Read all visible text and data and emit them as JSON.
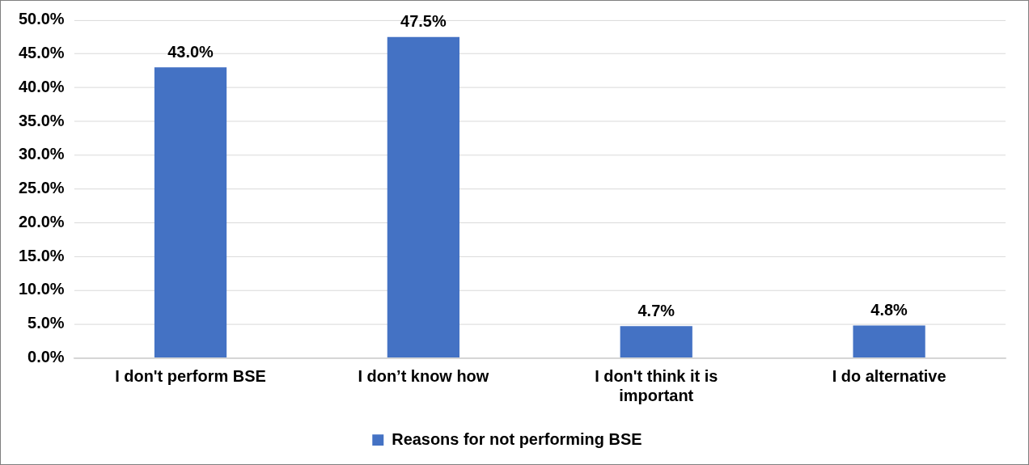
{
  "chart_data": {
    "type": "bar",
    "categories": [
      "I don't perform BSE",
      "I don’t know how",
      "I don't think it is important",
      "I do alternative"
    ],
    "series": [
      {
        "name": "Reasons for not performing BSE",
        "color": "#4472c4",
        "values": [
          43.0,
          47.5,
          4.7,
          4.8
        ],
        "value_labels": [
          "43.0%",
          "47.5%",
          "4.7%",
          "4.8%"
        ]
      }
    ],
    "ylim": [
      0,
      50
    ],
    "yticks": [
      {
        "value": 0,
        "label": "0.0%"
      },
      {
        "value": 5,
        "label": "5.0%"
      },
      {
        "value": 10,
        "label": "10.0%"
      },
      {
        "value": 15,
        "label": "15.0%"
      },
      {
        "value": 20,
        "label": "20.0%"
      },
      {
        "value": 25,
        "label": "25.0%"
      },
      {
        "value": 30,
        "label": "30.0%"
      },
      {
        "value": 35,
        "label": "35.0%"
      },
      {
        "value": 40,
        "label": "40.0%"
      },
      {
        "value": 45,
        "label": "45.0%"
      },
      {
        "value": 50,
        "label": "50.0%"
      }
    ],
    "grid": "y",
    "legend": "bottom"
  }
}
